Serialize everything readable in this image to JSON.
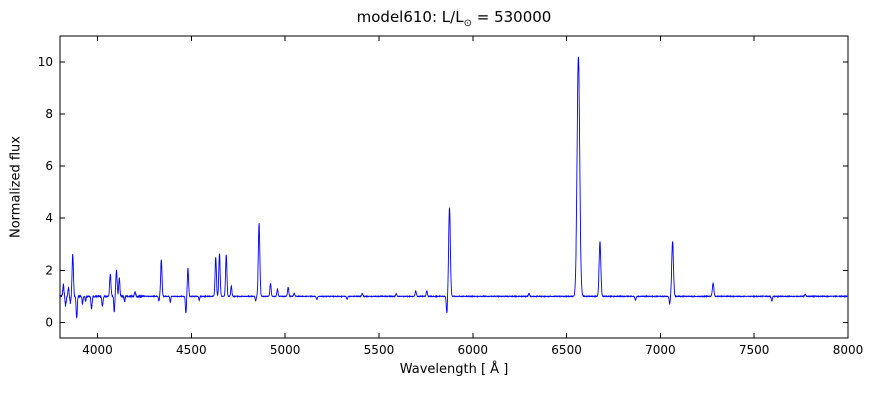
{
  "figure": {
    "title": {
      "prefix": "model610: L/L",
      "sub": "⊙",
      "suffix": " = 530000"
    },
    "xlabel": "Wavelength [ Å ]",
    "ylabel": "Normalized flux"
  },
  "chart_data": {
    "type": "line",
    "title": "model610: L/L⊙ = 530000",
    "xlabel": "Wavelength [ Å ]",
    "ylabel": "Normalized flux",
    "xlim": [
      3800,
      8000
    ],
    "ylim": [
      -0.6,
      11
    ],
    "x_ticks": [
      4000,
      4500,
      5000,
      5500,
      6000,
      6500,
      7000,
      7500,
      8000
    ],
    "y_ticks": [
      0,
      2,
      4,
      6,
      8,
      10
    ],
    "grid": false,
    "legend": "none",
    "line_color": "#0000ff",
    "continuum_flux": 1.0,
    "sample_step_angstrom": 1,
    "noise": {
      "amplitude_far_blue": 0.07,
      "far_blue_limit": 3880,
      "amplitude_blue": 0.03,
      "blue_limit": 4250,
      "amplitude_red": 0.012
    },
    "spectral_lines": [
      {
        "wavelength": 3818,
        "peak_flux": 1.45,
        "width": 3.0
      },
      {
        "wavelength": 3830,
        "peak_flux": 0.65,
        "width": 3.0
      },
      {
        "wavelength": 3845,
        "peak_flux": 1.35,
        "width": 2.5
      },
      {
        "wavelength": 3856,
        "peak_flux": 0.75,
        "width": 2.5
      },
      {
        "wavelength": 3868,
        "peak_flux": 2.65,
        "width": 3.5
      },
      {
        "wavelength": 3889,
        "peak_flux": 0.18,
        "width": 3.0
      },
      {
        "wavelength": 3920,
        "peak_flux": 0.72,
        "width": 2.5
      },
      {
        "wavelength": 3936,
        "peak_flux": 0.82,
        "width": 2.5
      },
      {
        "wavelength": 3968,
        "peak_flux": 0.52,
        "width": 3.0
      },
      {
        "wavelength": 4026,
        "peak_flux": 0.6,
        "width": 3.0
      },
      {
        "wavelength": 4068,
        "peak_flux": 1.85,
        "width": 3.5
      },
      {
        "wavelength": 4089,
        "peak_flux": 0.38,
        "width": 2.5
      },
      {
        "wavelength": 4101,
        "peak_flux": 2.0,
        "width": 3.5
      },
      {
        "wavelength": 4116,
        "peak_flux": 1.72,
        "width": 3.0
      },
      {
        "wavelength": 4144,
        "peak_flux": 0.8,
        "width": 2.5
      },
      {
        "wavelength": 4200,
        "peak_flux": 1.18,
        "width": 3.0
      },
      {
        "wavelength": 4327,
        "peak_flux": 0.82,
        "width": 2.5
      },
      {
        "wavelength": 4340,
        "peak_flux": 2.4,
        "width": 3.5
      },
      {
        "wavelength": 4388,
        "peak_flux": 0.78,
        "width": 2.5
      },
      {
        "wavelength": 4471,
        "peak_flux": 0.35,
        "width": 2.8
      },
      {
        "wavelength": 4482,
        "peak_flux": 2.1,
        "width": 3.2
      },
      {
        "wavelength": 4542,
        "peak_flux": 0.85,
        "width": 2.5
      },
      {
        "wavelength": 4630,
        "peak_flux": 2.5,
        "width": 3.5
      },
      {
        "wavelength": 4650,
        "peak_flux": 2.65,
        "width": 3.5
      },
      {
        "wavelength": 4686,
        "peak_flux": 2.6,
        "width": 3.5
      },
      {
        "wavelength": 4713,
        "peak_flux": 1.4,
        "width": 3.0
      },
      {
        "wavelength": 4843,
        "peak_flux": 0.82,
        "width": 2.5
      },
      {
        "wavelength": 4861,
        "peak_flux": 3.8,
        "width": 4.0
      },
      {
        "wavelength": 4922,
        "peak_flux": 1.5,
        "width": 3.2
      },
      {
        "wavelength": 4959,
        "peak_flux": 1.28,
        "width": 3.0
      },
      {
        "wavelength": 5016,
        "peak_flux": 1.35,
        "width": 3.2
      },
      {
        "wavelength": 5048,
        "peak_flux": 1.12,
        "width": 3.0
      },
      {
        "wavelength": 5169,
        "peak_flux": 0.88,
        "width": 3.0
      },
      {
        "wavelength": 5330,
        "peak_flux": 0.9,
        "width": 3.0
      },
      {
        "wavelength": 5411,
        "peak_flux": 1.12,
        "width": 3.0
      },
      {
        "wavelength": 5592,
        "peak_flux": 1.1,
        "width": 3.0
      },
      {
        "wavelength": 5696,
        "peak_flux": 1.2,
        "width": 3.5
      },
      {
        "wavelength": 5755,
        "peak_flux": 1.22,
        "width": 3.0
      },
      {
        "wavelength": 5862,
        "peak_flux": 0.35,
        "width": 3.0
      },
      {
        "wavelength": 5876,
        "peak_flux": 4.4,
        "width": 4.5
      },
      {
        "wavelength": 6300,
        "peak_flux": 1.12,
        "width": 3.0
      },
      {
        "wavelength": 6563,
        "peak_flux": 10.2,
        "width": 7.0
      },
      {
        "wavelength": 6678,
        "peak_flux": 3.1,
        "width": 4.5
      },
      {
        "wavelength": 6867,
        "peak_flux": 0.85,
        "width": 3.0
      },
      {
        "wavelength": 7050,
        "peak_flux": 0.7,
        "width": 3.0
      },
      {
        "wavelength": 7065,
        "peak_flux": 3.1,
        "width": 4.5
      },
      {
        "wavelength": 7281,
        "peak_flux": 1.5,
        "width": 4.0
      },
      {
        "wavelength": 7594,
        "peak_flux": 0.82,
        "width": 3.0
      },
      {
        "wavelength": 7772,
        "peak_flux": 1.08,
        "width": 3.0
      }
    ]
  }
}
